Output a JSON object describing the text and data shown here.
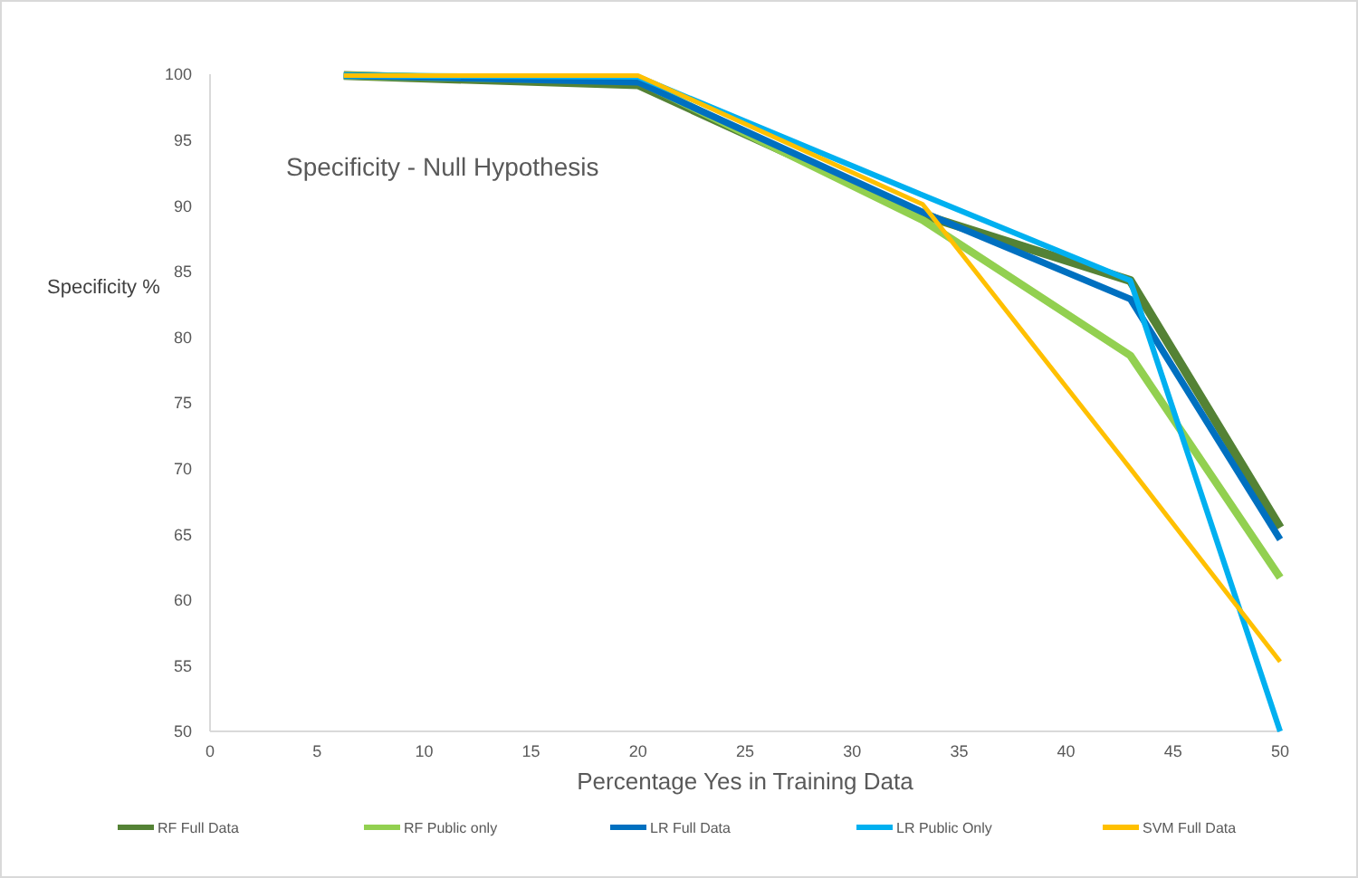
{
  "chart_data": {
    "type": "line",
    "title": "Specificity - Null Hypothesis",
    "xlabel": "Percentage Yes in Training Data",
    "ylabel": "Specificity %",
    "x": [
      6.25,
      20,
      33.3,
      43,
      50
    ],
    "series": [
      {
        "name": "RF Full Data",
        "color": "#548235",
        "values": [
          99.9,
          99.2,
          89.3,
          84.3,
          65.5
        ]
      },
      {
        "name": "RF Public only",
        "color": "#92d050",
        "values": [
          99.9,
          99.5,
          88.9,
          78.6,
          61.7
        ]
      },
      {
        "name": "LR Full Data",
        "color": "#0070c0",
        "values": [
          99.9,
          99.4,
          89.5,
          82.9,
          64.6
        ]
      },
      {
        "name": "LR Public Only",
        "color": "#00b0f0",
        "values": [
          99.9,
          99.8,
          90.8,
          84.3,
          50
        ]
      },
      {
        "name": "SVM Full Data",
        "color": "#ffc000",
        "values": [
          99.9,
          99.9,
          90.1,
          70,
          55.3
        ]
      }
    ],
    "xlim": [
      0,
      50
    ],
    "xticks": [
      0,
      5,
      10,
      15,
      20,
      25,
      30,
      35,
      40,
      45,
      50
    ],
    "ylim": [
      50,
      100
    ],
    "yticks": [
      50,
      55,
      60,
      65,
      70,
      75,
      80,
      85,
      90,
      95,
      100
    ],
    "grid": false,
    "legend": "bottom",
    "marker": "none",
    "line_style": "solid"
  }
}
